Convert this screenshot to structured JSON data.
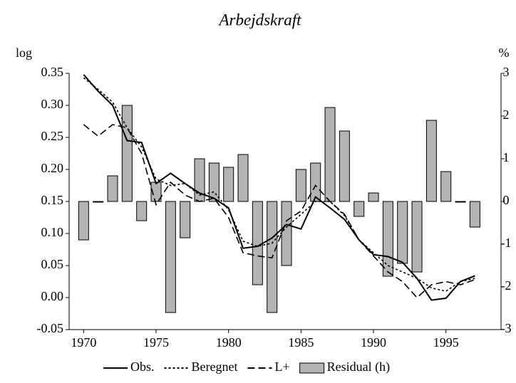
{
  "chart_data": {
    "type": "line-bar",
    "title": "Arbejdskraft",
    "ylabel": "log",
    "y2label": "%",
    "x": [
      1970,
      1971,
      1972,
      1973,
      1974,
      1975,
      1976,
      1977,
      1978,
      1979,
      1980,
      1981,
      1982,
      1983,
      1984,
      1985,
      1986,
      1987,
      1988,
      1989,
      1990,
      1991,
      1992,
      1993,
      1994,
      1995,
      1996,
      1997
    ],
    "xlim": [
      1969,
      1998.8
    ],
    "xticks": [
      1970,
      1975,
      1980,
      1985,
      1990,
      1995
    ],
    "ylim": [
      -0.05,
      0.35
    ],
    "yticks": [
      {
        "value": -0.05,
        "label": "-0.05"
      },
      {
        "value": 0,
        "label": "0.00"
      },
      {
        "value": 0.05,
        "label": "0.05"
      },
      {
        "value": 0.1,
        "label": "0.10"
      },
      {
        "value": 0.15,
        "label": "0.15"
      },
      {
        "value": 0.2,
        "label": "0.20"
      },
      {
        "value": 0.25,
        "label": "0.25"
      },
      {
        "value": 0.3,
        "label": "0.30"
      },
      {
        "value": 0.35,
        "label": "0.35"
      }
    ],
    "y2lim": [
      -3,
      3
    ],
    "y2ticks": [
      -3,
      -2,
      -1,
      0,
      1,
      2,
      3
    ],
    "series": [
      {
        "name": "Obs.",
        "kind": "line",
        "dash": "none",
        "color": "#000000",
        "values": [
          0.348,
          0.322,
          0.3,
          0.245,
          0.242,
          0.178,
          0.194,
          0.178,
          0.163,
          0.155,
          0.14,
          0.077,
          0.08,
          0.093,
          0.114,
          0.107,
          0.157,
          0.14,
          0.122,
          0.09,
          0.067,
          0.064,
          0.055,
          0.03,
          -0.004,
          -0.001,
          0.025,
          0.034
        ]
      },
      {
        "name": "Beregnet",
        "kind": "line",
        "dash": "3,3",
        "color": "#000000",
        "values": [
          0.343,
          0.325,
          0.305,
          0.265,
          0.235,
          0.185,
          0.175,
          0.178,
          0.16,
          0.165,
          0.137,
          0.088,
          0.08,
          0.085,
          0.11,
          0.13,
          0.15,
          0.15,
          0.128,
          0.09,
          0.07,
          0.05,
          0.04,
          0.03,
          0.015,
          0.01,
          0.025,
          0.03
        ]
      },
      {
        "name": "L+",
        "kind": "line",
        "dash": "10,5",
        "color": "#000000",
        "values": [
          0.27,
          0.252,
          0.27,
          0.265,
          0.225,
          0.145,
          0.18,
          0.16,
          0.15,
          0.155,
          0.125,
          0.07,
          0.065,
          0.062,
          0.12,
          0.135,
          0.175,
          0.15,
          0.13,
          0.09,
          0.065,
          0.04,
          0.025,
          0.0,
          0.02,
          0.025,
          0.02,
          0.028
        ]
      },
      {
        "name": "Residual (h)",
        "kind": "bar",
        "axis": "y2",
        "color": "#b3b3b3",
        "values": [
          -0.9,
          0,
          0.6,
          2.25,
          -0.45,
          0.45,
          -2.6,
          -0.85,
          1.0,
          0.9,
          0.8,
          1.1,
          -1.95,
          -2.6,
          -1.5,
          0.75,
          0.9,
          2.2,
          1.65,
          -0.35,
          0.2,
          -1.75,
          -1.45,
          -1.65,
          1.9,
          0.7,
          0,
          -0.6
        ]
      }
    ]
  }
}
